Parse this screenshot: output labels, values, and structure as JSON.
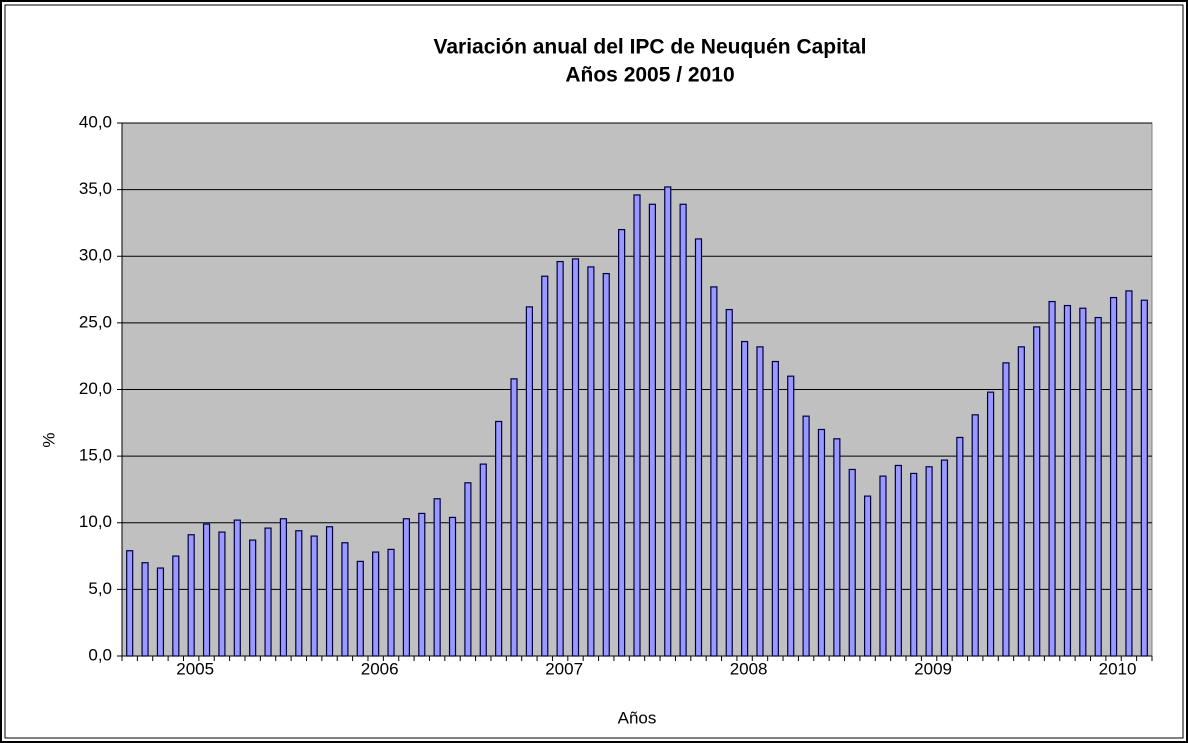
{
  "chart_data": {
    "type": "bar",
    "title": "Variación anual del IPC de Neuquén Capital",
    "subtitle": "Años 2005 / 2010",
    "x_label": "Años",
    "y_label": "%",
    "categories": [
      null,
      null,
      null,
      null,
      "2005",
      null,
      null,
      null,
      null,
      null,
      null,
      null,
      null,
      null,
      null,
      null,
      "2006",
      null,
      null,
      null,
      null,
      null,
      null,
      null,
      null,
      null,
      null,
      null,
      "2007",
      null,
      null,
      null,
      null,
      null,
      null,
      null,
      null,
      null,
      null,
      null,
      "2008",
      null,
      null,
      null,
      null,
      null,
      null,
      null,
      null,
      null,
      null,
      null,
      "2009",
      null,
      null,
      null,
      null,
      null,
      null,
      null,
      null,
      null,
      null,
      null,
      "2010",
      null,
      null
    ],
    "values": [
      7.9,
      7.0,
      6.6,
      7.5,
      9.1,
      9.9,
      9.3,
      10.2,
      8.7,
      9.6,
      10.3,
      9.4,
      9.0,
      9.7,
      8.5,
      7.1,
      7.8,
      8.0,
      10.3,
      10.7,
      11.8,
      10.4,
      13.0,
      14.4,
      17.6,
      20.8,
      26.2,
      28.5,
      29.6,
      29.8,
      29.2,
      28.7,
      32.0,
      34.6,
      33.9,
      35.2,
      33.9,
      31.3,
      27.7,
      26.0,
      23.6,
      23.2,
      22.1,
      21.0,
      18.0,
      17.0,
      16.3,
      14.0,
      12.0,
      13.5,
      14.3,
      13.7,
      14.2,
      14.7,
      16.4,
      18.1,
      19.8,
      22.0,
      23.2,
      24.7,
      26.6,
      26.3,
      26.1,
      25.4,
      26.9,
      27.4,
      26.7
    ],
    "color": "#9999ff",
    "ylim": [
      0,
      40
    ],
    "yticks": [
      {
        "value": 0,
        "label": "0,0"
      },
      {
        "value": 5,
        "label": "5,0"
      },
      {
        "value": 10,
        "label": "10,0"
      },
      {
        "value": 15,
        "label": "15,0"
      },
      {
        "value": 20,
        "label": "20,0"
      },
      {
        "value": 25,
        "label": "25,0"
      },
      {
        "value": 30,
        "label": "30,0"
      },
      {
        "value": 35,
        "label": "35,0"
      },
      {
        "value": 40,
        "label": "40,0"
      }
    ],
    "grid": true
  }
}
